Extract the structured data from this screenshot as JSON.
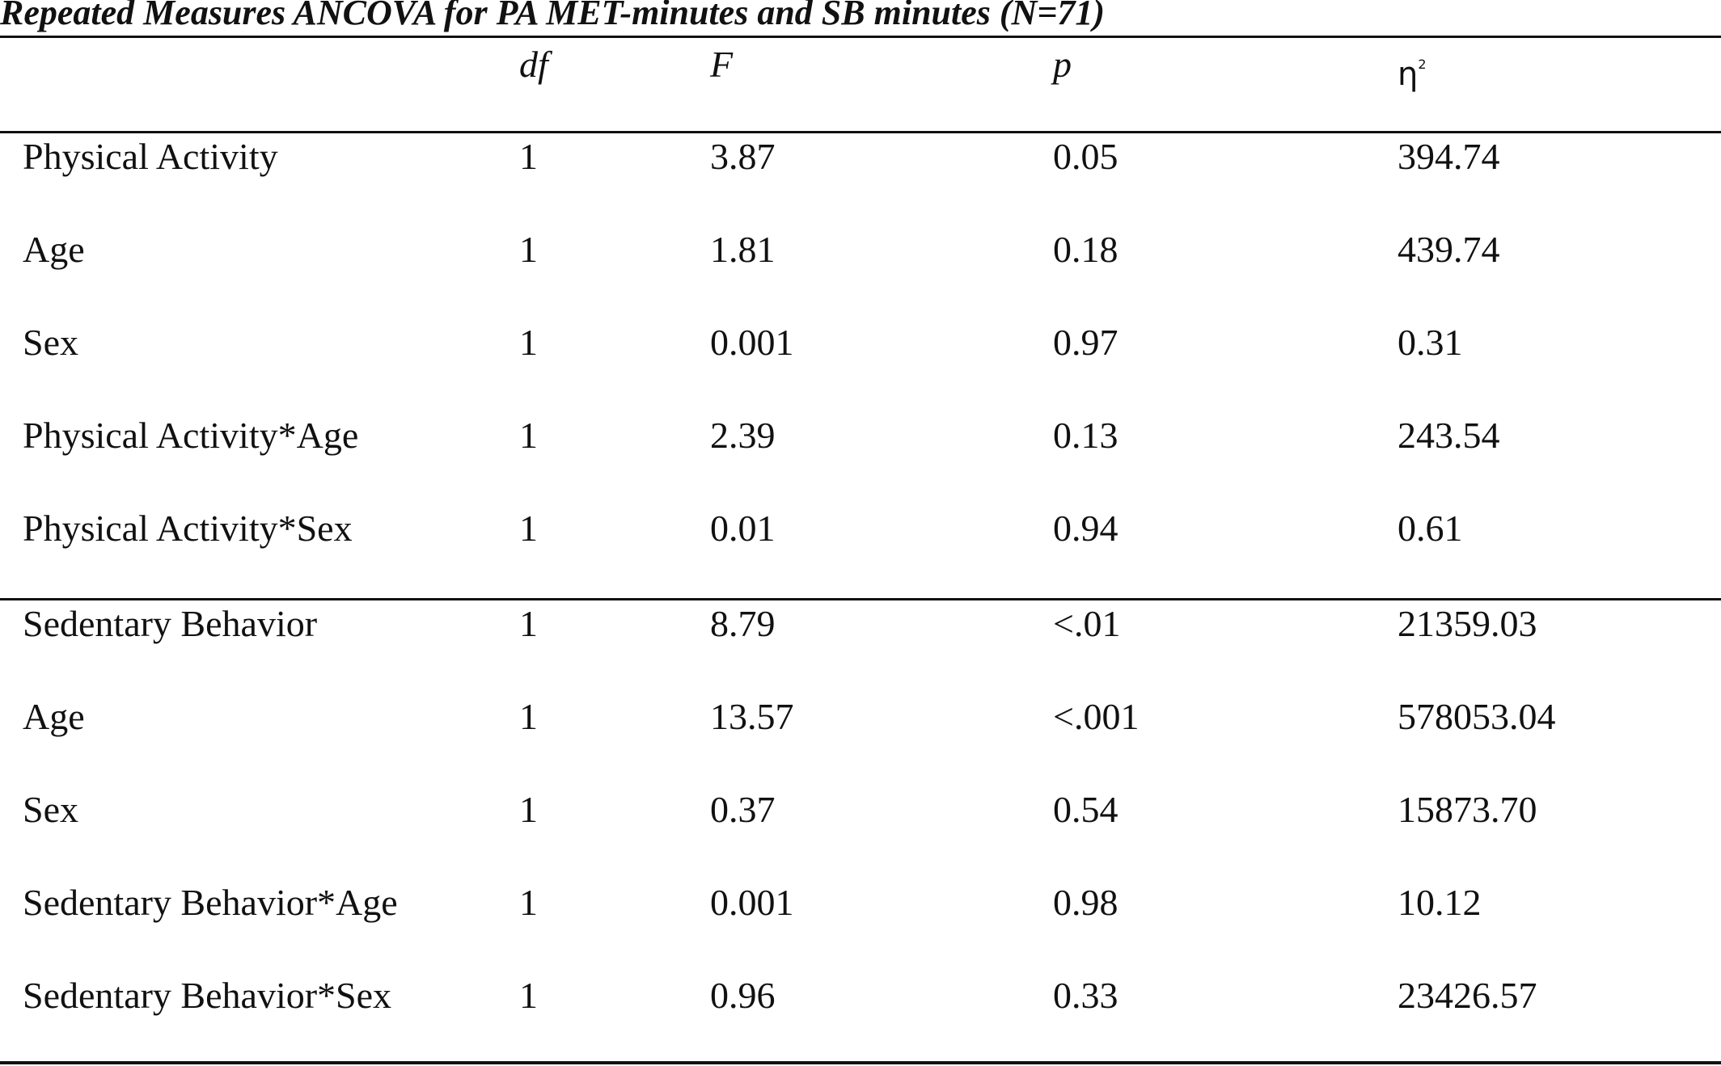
{
  "table": {
    "title": "Repeated Measures ANCOVA for PA MET-minutes and SB minutes (N=71)",
    "columns": {
      "df": "df",
      "F": "F",
      "p": "p",
      "eta_base": "η",
      "eta_sup": "2"
    },
    "rows": [
      {
        "label": "Physical Activity",
        "df": "1",
        "F": "3.87",
        "p": "0.05",
        "eta": "394.74"
      },
      {
        "label": "Age",
        "df": "1",
        "F": "1.81",
        "p": "0.18",
        "eta": "439.74"
      },
      {
        "label": "Sex",
        "df": "1",
        "F": "0.001",
        "p": "0.97",
        "eta": "0.31"
      },
      {
        "label": "Physical Activity*Age",
        "df": "1",
        "F": "2.39",
        "p": "0.13",
        "eta": "243.54"
      },
      {
        "label": "Physical Activity*Sex",
        "df": "1",
        "F": "0.01",
        "p": "0.94",
        "eta": "0.61"
      },
      {
        "label": "Sedentary Behavior",
        "df": "1",
        "F": "8.79",
        "p": "<.01",
        "eta": "21359.03"
      },
      {
        "label": "Age",
        "df": "1",
        "F": "13.57",
        "p": "<.001",
        "eta": "578053.04"
      },
      {
        "label": "Sex",
        "df": "1",
        "F": "0.37",
        "p": "0.54",
        "eta": "15873.70"
      },
      {
        "label": "Sedentary Behavior*Age",
        "df": "1",
        "F": "0.001",
        "p": "0.98",
        "eta": "10.12"
      },
      {
        "label": "Sedentary Behavior*Sex",
        "df": "1",
        "F": "0.96",
        "p": "0.33",
        "eta": "23426.57"
      }
    ]
  }
}
